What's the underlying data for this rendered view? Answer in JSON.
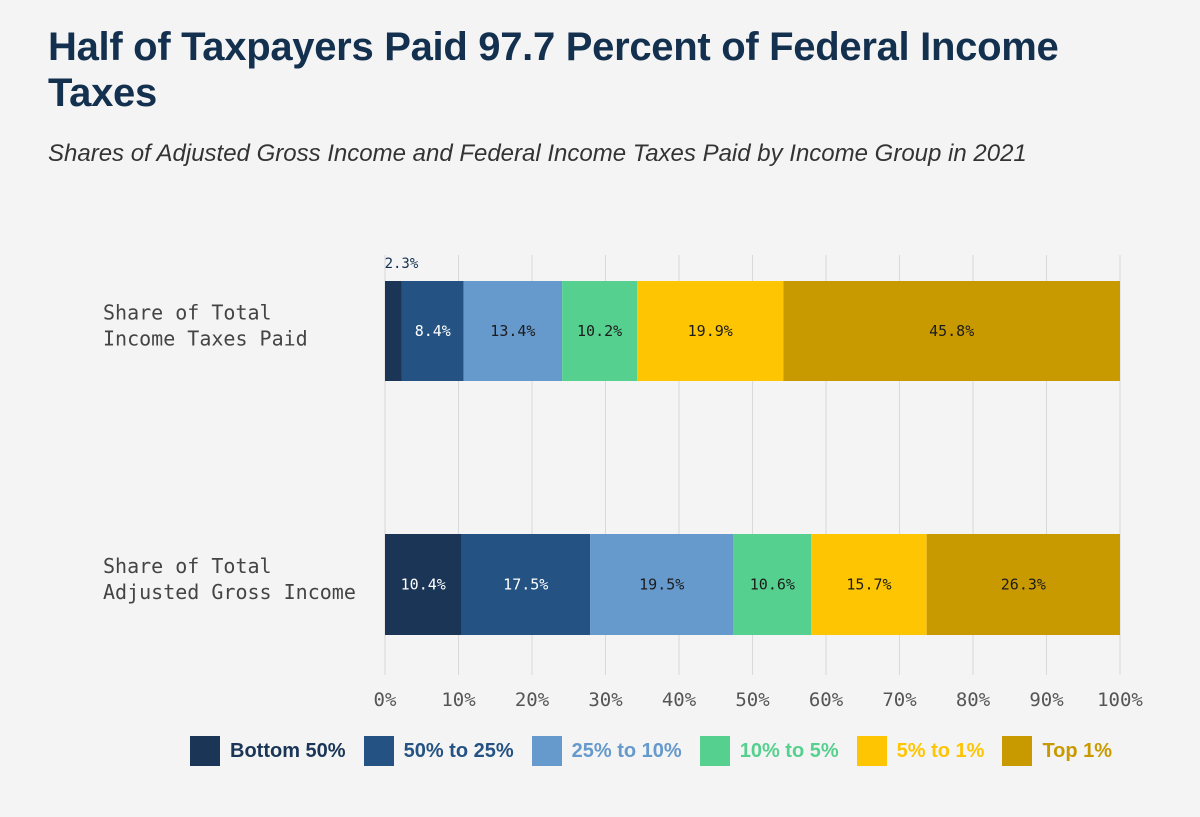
{
  "title": "Half of Taxpayers Paid 97.7 Percent of Federal Income Taxes",
  "subtitle": "Shares of Adjusted Gross Income and Federal Income Taxes Paid by Income Group in 2021",
  "colors": {
    "background": "#f4f4f4",
    "title": "#14304f",
    "gridline": "#d9d9d9",
    "axis_text": "#555555"
  },
  "chart_data": {
    "type": "bar",
    "orientation": "horizontal",
    "stacked": true,
    "categories": [
      [
        "Share of Total",
        "Income Taxes Paid"
      ],
      [
        "Share of Total",
        "Adjusted Gross Income"
      ]
    ],
    "series": [
      {
        "name": "Bottom 50%",
        "color": "#1a3556",
        "label_color": "#ffffff",
        "values": [
          2.3,
          10.4
        ],
        "labels": [
          "2.3%",
          "10.4%"
        ]
      },
      {
        "name": "50% to 25%",
        "color": "#245282",
        "label_color": "#ffffff",
        "values": [
          8.4,
          17.5
        ],
        "labels": [
          "8.4%",
          "17.5%"
        ]
      },
      {
        "name": "25% to 10%",
        "color": "#6699cc",
        "label_color": "#1c1c1c",
        "values": [
          13.4,
          19.5
        ],
        "labels": [
          "13.4%",
          "19.5%"
        ]
      },
      {
        "name": "10% to 5%",
        "color": "#56d08f",
        "label_color": "#1c1c1c",
        "values": [
          10.2,
          10.6
        ],
        "labels": [
          "10.2%",
          "10.6%"
        ]
      },
      {
        "name": "5% to 1%",
        "color": "#fec502",
        "label_color": "#1c1c1c",
        "values": [
          19.9,
          15.7
        ],
        "labels": [
          "19.9%",
          "15.7%"
        ]
      },
      {
        "name": "Top 1%",
        "color": "#c99a00",
        "label_color": "#1c1c1c",
        "values": [
          45.8,
          26.3
        ],
        "labels": [
          "45.8%",
          "26.3%"
        ]
      }
    ],
    "xlim": [
      0,
      100
    ],
    "xticks": [
      0,
      10,
      20,
      30,
      40,
      50,
      60,
      70,
      80,
      90,
      100
    ],
    "xtick_labels": [
      "0%",
      "10%",
      "20%",
      "30%",
      "40%",
      "50%",
      "60%",
      "70%",
      "80%",
      "90%",
      "100%"
    ],
    "grid": true,
    "legend_position": "bottom"
  }
}
